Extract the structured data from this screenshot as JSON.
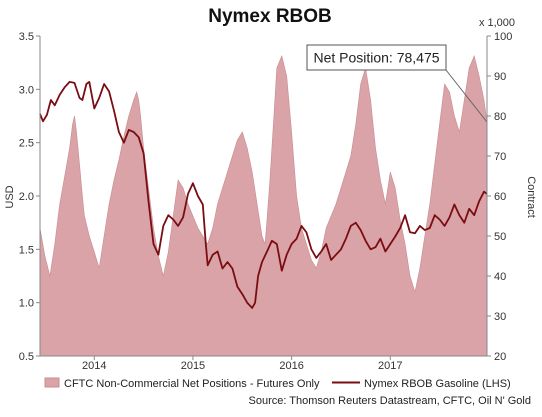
{
  "chart_data": {
    "type": "line",
    "title": "Nymex RBOB",
    "ylabel": "USD",
    "y2label": "Contract",
    "y2_unit": "x 1,000",
    "ylim": [
      0.5,
      3.5
    ],
    "y2lim": [
      20,
      100
    ],
    "yticks": [
      "0.5",
      "1.0",
      "1.5",
      "2.0",
      "2.5",
      "3.0",
      "3.5"
    ],
    "y2ticks": [
      "20",
      "30",
      "40",
      "50",
      "60",
      "70",
      "80",
      "90",
      "100"
    ],
    "xlim": [
      2013.45,
      2017.98
    ],
    "xticks": [
      {
        "label": "2014",
        "x": 2014.0
      },
      {
        "label": "2015",
        "x": 2015.0
      },
      {
        "label": "2016",
        "x": 2016.0
      },
      {
        "label": "2017",
        "x": 2017.0
      }
    ],
    "grid": false,
    "legend_position": "bottom",
    "annotation": {
      "text": "Net Position: 78,475"
    },
    "source": "Source: Thomson Reuters Datastream, CFTC, Oil N' Gold",
    "colors": {
      "area": "#d9a3a7",
      "area_edge": "#c98d92",
      "line": "#7a0d12",
      "axis": "#888888"
    },
    "series": [
      {
        "name": "CFTC Non-Commercial Net Positions - Futures Only",
        "kind": "area",
        "axis": "right",
        "x": [
          2013.45,
          2013.5,
          2013.55,
          2013.6,
          2013.65,
          2013.7,
          2013.75,
          2013.78,
          2013.8,
          2013.82,
          2013.85,
          2013.88,
          2013.9,
          2013.95,
          2014.0,
          2014.05,
          2014.1,
          2014.15,
          2014.2,
          2014.25,
          2014.3,
          2014.35,
          2014.4,
          2014.43,
          2014.45,
          2014.47,
          2014.5,
          2014.55,
          2014.6,
          2014.65,
          2014.7,
          2014.75,
          2014.8,
          2014.85,
          2014.9,
          2014.95,
          2015.0,
          2015.05,
          2015.1,
          2015.15,
          2015.2,
          2015.25,
          2015.3,
          2015.35,
          2015.4,
          2015.45,
          2015.5,
          2015.55,
          2015.6,
          2015.65,
          2015.7,
          2015.73,
          2015.75,
          2015.78,
          2015.82,
          2015.85,
          2015.9,
          2015.95,
          2016.0,
          2016.05,
          2016.1,
          2016.15,
          2016.2,
          2016.25,
          2016.3,
          2016.35,
          2016.4,
          2016.45,
          2016.5,
          2016.55,
          2016.6,
          2016.65,
          2016.7,
          2016.75,
          2016.8,
          2016.85,
          2016.9,
          2016.95,
          2017.0,
          2017.05,
          2017.1,
          2017.15,
          2017.2,
          2017.25,
          2017.3,
          2017.35,
          2017.4,
          2017.45,
          2017.5,
          2017.55,
          2017.6,
          2017.65,
          2017.7,
          2017.75,
          2017.8,
          2017.85,
          2017.9,
          2017.95,
          2017.98
        ],
        "values": [
          52,
          45,
          40,
          48,
          58,
          65,
          72,
          78,
          80,
          76,
          68,
          60,
          55,
          50,
          46,
          42,
          50,
          58,
          64,
          69,
          75,
          80,
          84,
          86,
          84,
          80,
          72,
          62,
          52,
          45,
          40,
          46,
          55,
          64,
          62,
          58,
          55,
          52,
          50,
          48,
          52,
          58,
          62,
          66,
          70,
          74,
          76,
          72,
          66,
          58,
          50,
          48,
          54,
          64,
          80,
          92,
          95,
          90,
          76,
          60,
          52,
          48,
          44,
          42,
          46,
          52,
          55,
          58,
          62,
          66,
          70,
          78,
          88,
          92,
          84,
          72,
          64,
          58,
          66,
          62,
          54,
          48,
          40,
          36,
          42,
          50,
          58,
          68,
          78,
          88,
          86,
          80,
          76,
          84,
          92,
          95,
          90,
          84,
          78.475
        ]
      },
      {
        "name": "Nymex RBOB Gasoline (LHS)",
        "kind": "line",
        "axis": "left",
        "x": [
          2013.45,
          2013.48,
          2013.52,
          2013.56,
          2013.6,
          2013.65,
          2013.7,
          2013.75,
          2013.8,
          2013.85,
          2013.88,
          2013.92,
          2013.95,
          2014.0,
          2014.05,
          2014.1,
          2014.15,
          2014.2,
          2014.25,
          2014.3,
          2014.35,
          2014.4,
          2014.45,
          2014.5,
          2014.55,
          2014.6,
          2014.65,
          2014.7,
          2014.75,
          2014.8,
          2014.85,
          2014.9,
          2014.95,
          2015.0,
          2015.05,
          2015.1,
          2015.13,
          2015.15,
          2015.2,
          2015.25,
          2015.3,
          2015.35,
          2015.4,
          2015.45,
          2015.5,
          2015.55,
          2015.6,
          2015.63,
          2015.66,
          2015.7,
          2015.75,
          2015.8,
          2015.85,
          2015.9,
          2015.95,
          2016.0,
          2016.05,
          2016.1,
          2016.15,
          2016.2,
          2016.25,
          2016.3,
          2016.35,
          2016.4,
          2016.45,
          2016.5,
          2016.55,
          2016.6,
          2016.65,
          2016.7,
          2016.75,
          2016.8,
          2016.85,
          2016.9,
          2016.95,
          2017.0,
          2017.05,
          2017.1,
          2017.15,
          2017.2,
          2017.25,
          2017.3,
          2017.35,
          2017.4,
          2017.45,
          2017.5,
          2017.55,
          2017.6,
          2017.65,
          2017.7,
          2017.75,
          2017.8,
          2017.85,
          2017.9,
          2017.95,
          2017.98
        ],
        "values": [
          2.77,
          2.7,
          2.76,
          2.9,
          2.85,
          2.95,
          3.02,
          3.07,
          3.06,
          2.92,
          2.9,
          3.05,
          3.07,
          2.82,
          2.92,
          3.05,
          2.98,
          2.8,
          2.6,
          2.5,
          2.62,
          2.6,
          2.55,
          2.4,
          1.95,
          1.55,
          1.45,
          1.72,
          1.82,
          1.78,
          1.72,
          1.8,
          2.02,
          2.12,
          2.0,
          1.92,
          1.55,
          1.35,
          1.45,
          1.48,
          1.32,
          1.38,
          1.32,
          1.15,
          1.08,
          1.0,
          0.95,
          1.0,
          1.25,
          1.38,
          1.48,
          1.58,
          1.55,
          1.3,
          1.45,
          1.55,
          1.6,
          1.72,
          1.66,
          1.5,
          1.42,
          1.48,
          1.55,
          1.4,
          1.45,
          1.5,
          1.6,
          1.72,
          1.75,
          1.68,
          1.58,
          1.5,
          1.52,
          1.6,
          1.48,
          1.55,
          1.62,
          1.7,
          1.82,
          1.66,
          1.65,
          1.72,
          1.68,
          1.7,
          1.82,
          1.78,
          1.72,
          1.8,
          1.92,
          1.82,
          1.75,
          1.88,
          1.82,
          1.95,
          2.04,
          2.02
        ]
      }
    ]
  }
}
